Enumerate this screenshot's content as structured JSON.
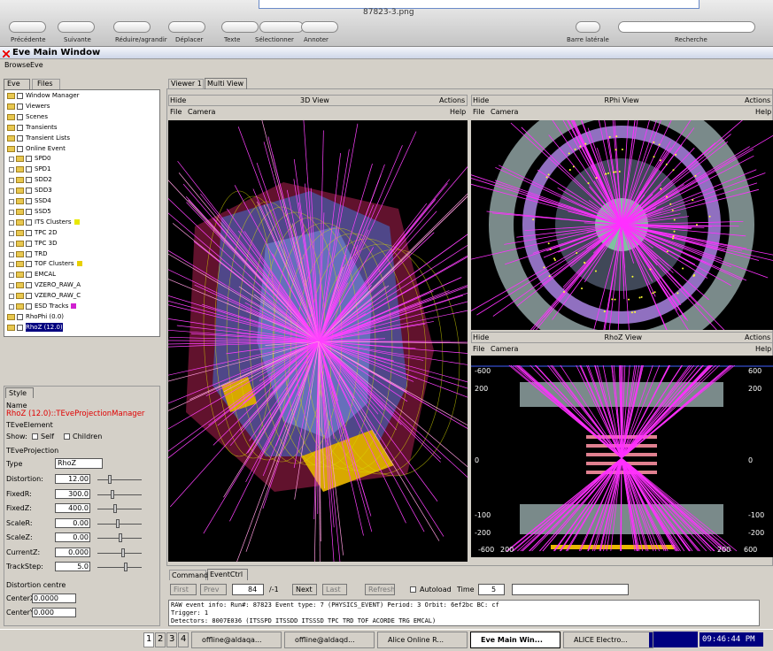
{
  "window": {
    "file_title": "87823-3.png",
    "toolbar": [
      "Précédente",
      "Suivante",
      "Réduire/agrandir",
      "Déplacer",
      "Texte",
      "Sélectionner",
      "Annoter"
    ],
    "toolbar_right": [
      "Barre latérale",
      "Recherche"
    ]
  },
  "app": {
    "title": "Eve Main Window",
    "menu": [
      "Browse",
      "Eve"
    ]
  },
  "left": {
    "tabs": [
      "Eve",
      "Files"
    ],
    "tree": [
      {
        "label": "Window Manager"
      },
      {
        "label": "Viewers"
      },
      {
        "label": "Scenes"
      },
      {
        "label": "Transients"
      },
      {
        "label": "Transient Lists"
      },
      {
        "label": "Online Event",
        "children": [
          {
            "label": "SPD0"
          },
          {
            "label": "SPD1"
          },
          {
            "label": "SDD2"
          },
          {
            "label": "SDD3"
          },
          {
            "label": "SSD4"
          },
          {
            "label": "SSD5"
          },
          {
            "label": "ITS Clusters",
            "color": "#e8e800"
          },
          {
            "label": "TPC 2D"
          },
          {
            "label": "TPC 3D"
          },
          {
            "label": "TRD"
          },
          {
            "label": "TOF Clusters",
            "color": "#e8d000"
          },
          {
            "label": "EMCAL"
          },
          {
            "label": "VZERO_RAW_A"
          },
          {
            "label": "VZERO_RAW_C"
          },
          {
            "label": "ESD Tracks",
            "color": "#d020d0"
          }
        ]
      },
      {
        "label": "RhoPhi (0.0)"
      },
      {
        "label": "RhoZ (12.0)",
        "selected": true
      }
    ]
  },
  "style": {
    "tab": "Style",
    "name_label": "Name",
    "name": "RhoZ (12.0)::TEveProjectionManager",
    "element": "TEveElement",
    "show": "Show:",
    "self": "Self",
    "children": "Children",
    "projection": "TEveProjection",
    "type_label": "Type",
    "type": "RhoZ",
    "rows": [
      {
        "label": "Distortion:",
        "value": "12.00"
      },
      {
        "label": "FixedR:",
        "value": "300.0"
      },
      {
        "label": "FixedZ:",
        "value": "400.0"
      },
      {
        "label": "ScaleR:",
        "value": "0.00"
      },
      {
        "label": "ScaleZ:",
        "value": "0.00"
      },
      {
        "label": "CurrentZ:",
        "value": "0.000"
      },
      {
        "label": "TrackStep:",
        "value": "5.0"
      }
    ],
    "centre": "Distortion centre",
    "centre_rows": [
      {
        "label": "CenterX:",
        "value": "0.0000"
      },
      {
        "label": "CenterY:",
        "value": "0.000"
      }
    ]
  },
  "views": {
    "tabs": [
      "Viewer 1",
      "Multi View"
    ],
    "hide": "Hide",
    "actions": "Actions",
    "file": "File",
    "camera": "Camera",
    "help": "Help",
    "v3d": "3D View",
    "rphi": "RPhi View",
    "rhoz": "RhoZ View",
    "rhoz_left": [
      "-600",
      "200",
      "0",
      "-100",
      "-200"
    ],
    "rhoz_right": [
      "600",
      "200",
      "0",
      "-100",
      "-200"
    ],
    "rhoz_bottom": [
      "-600",
      "200",
      "200",
      "600"
    ]
  },
  "event_ctrl": {
    "tabs": [
      "Command",
      "EventCtrl"
    ],
    "first": "First",
    "prev": "Prev",
    "event": "84",
    "total": "/-1",
    "next": "Next",
    "last": "Last",
    "refresh": "Refresh",
    "autoload": "Autoload",
    "time": "Time",
    "time_value": "5",
    "log": [
      "RAW event info: Run#: 87823  Event type: 7 (PHYSICS_EVENT)  Period: 3  Orbit: 6ef2bc  BC: cf",
      "Trigger: 1",
      "Detectors: 8007E036 (ITSSPD ITSSDD ITSSSD TPC TRD TOF ACORDE TRG EMCAL)"
    ]
  },
  "taskbar": {
    "desktops": [
      "1",
      "2",
      "3",
      "4"
    ],
    "tasks": [
      "offline@aldaqa...",
      "offline@aldaqd...",
      "Alice Online R...",
      "Eve Main Win...",
      "ALICE Electro..."
    ],
    "active": 3,
    "clock": "09:46:44 PM"
  }
}
